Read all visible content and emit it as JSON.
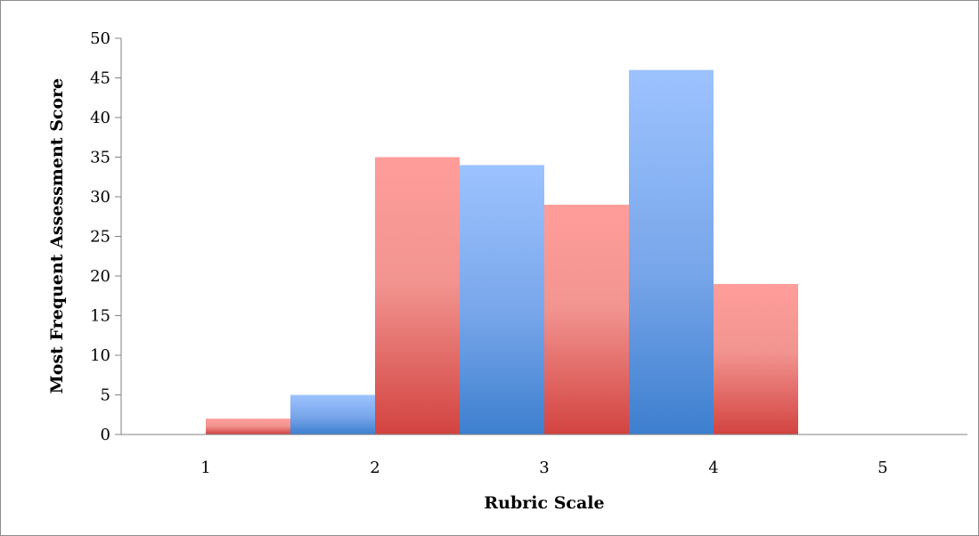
{
  "chart_data": {
    "type": "bar",
    "title": "",
    "xlabel": "Rubric Scale",
    "ylabel": "Most Frequent Assessment Score",
    "categories": [
      "1",
      "2",
      "3",
      "4",
      "5"
    ],
    "ylim": [
      0,
      50
    ],
    "yticks": [
      0,
      5,
      10,
      15,
      20,
      25,
      30,
      35,
      40,
      45,
      50
    ],
    "grid": false,
    "legend": "none",
    "bars": [
      {
        "x": 1.25,
        "value": 2,
        "color": "red"
      },
      {
        "x": 1.75,
        "value": 5,
        "color": "blue"
      },
      {
        "x": 2.25,
        "value": 35,
        "color": "red"
      },
      {
        "x": 2.75,
        "value": 34,
        "color": "blue"
      },
      {
        "x": 3.25,
        "value": 29,
        "color": "red"
      },
      {
        "x": 3.75,
        "value": 46,
        "color": "blue"
      },
      {
        "x": 4.25,
        "value": 19,
        "color": "red"
      }
    ],
    "colors": {
      "red_top": "#ff9d9a",
      "red_bottom": "#d24340",
      "blue_top": "#9dc3ff",
      "blue_bottom": "#3d7fcf",
      "axis": "#808080"
    }
  }
}
